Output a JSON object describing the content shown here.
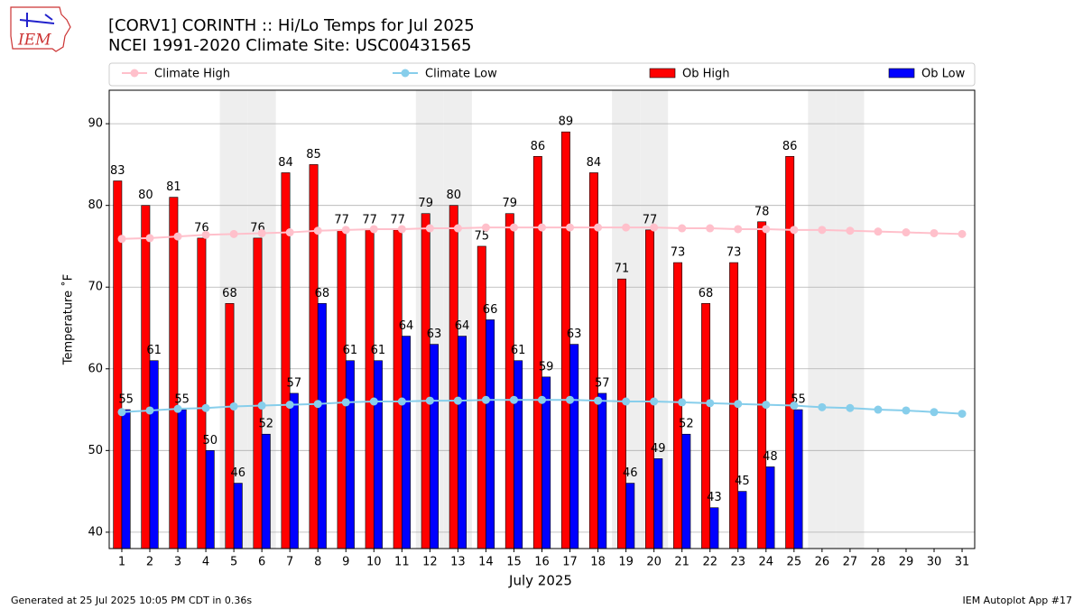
{
  "chart_data": {
    "type": "bar",
    "title": "[CORV1] CORINTH :: Hi/Lo Temps for Jul 2025",
    "subtitle": "NCEI 1991-2020 Climate Site: USC00431565",
    "xlabel": "July 2025",
    "ylabel": "Temperature ˚F",
    "logo": "IEM",
    "footer_left": "Generated at 25 Jul 2025 10:05 PM CDT in 0.36s",
    "footer_right": "IEM Autoplot App #17",
    "x": [
      1,
      2,
      3,
      4,
      5,
      6,
      7,
      8,
      9,
      10,
      11,
      12,
      13,
      14,
      15,
      16,
      17,
      18,
      19,
      20,
      21,
      22,
      23,
      24,
      25,
      26,
      27,
      28,
      29,
      30,
      31
    ],
    "series": [
      {
        "name": "Climate High",
        "type": "line",
        "color": "#ffc0cb",
        "values": [
          75.9,
          76.0,
          76.2,
          76.4,
          76.5,
          76.6,
          76.7,
          76.9,
          77.0,
          77.1,
          77.1,
          77.2,
          77.2,
          77.3,
          77.3,
          77.3,
          77.3,
          77.3,
          77.3,
          77.3,
          77.2,
          77.2,
          77.1,
          77.1,
          77.0,
          77.0,
          76.9,
          76.8,
          76.7,
          76.6,
          76.5
        ]
      },
      {
        "name": "Climate Low",
        "type": "line",
        "color": "#87ceeb",
        "values": [
          54.7,
          54.9,
          55.1,
          55.2,
          55.4,
          55.5,
          55.6,
          55.7,
          55.9,
          56.0,
          56.0,
          56.1,
          56.1,
          56.2,
          56.2,
          56.2,
          56.2,
          56.1,
          56.0,
          56.0,
          55.9,
          55.8,
          55.7,
          55.6,
          55.5,
          55.3,
          55.2,
          55.0,
          54.9,
          54.7,
          54.5
        ]
      },
      {
        "name": "Ob High",
        "type": "bar",
        "color": "#ff0000",
        "values": [
          83,
          80,
          81,
          76,
          68,
          76,
          84,
          85,
          77,
          77,
          77,
          79,
          80,
          75,
          79,
          86,
          89,
          84,
          71,
          77,
          73,
          68,
          73,
          78,
          86,
          null,
          null,
          null,
          null,
          null,
          null
        ]
      },
      {
        "name": "Ob Low",
        "type": "bar",
        "color": "#0000ff",
        "values": [
          55,
          61,
          55,
          50,
          46,
          52,
          57,
          68,
          61,
          61,
          64,
          63,
          64,
          66,
          61,
          59,
          63,
          57,
          46,
          49,
          52,
          43,
          45,
          48,
          55,
          null,
          null,
          null,
          null,
          null,
          null
        ]
      }
    ],
    "shaded_days": [
      5,
      6,
      12,
      13,
      19,
      20,
      26,
      27
    ],
    "xlim": [
      0.55,
      31.45
    ],
    "xticks": [
      1,
      2,
      3,
      4,
      5,
      6,
      7,
      8,
      9,
      10,
      11,
      12,
      13,
      14,
      15,
      16,
      17,
      18,
      19,
      20,
      21,
      22,
      23,
      24,
      25,
      26,
      27,
      28,
      29,
      30,
      31
    ],
    "ylim": [
      38,
      94.1
    ],
    "yticks": [
      40,
      50,
      60,
      70,
      80,
      90
    ],
    "grid": true,
    "legend": "top"
  }
}
